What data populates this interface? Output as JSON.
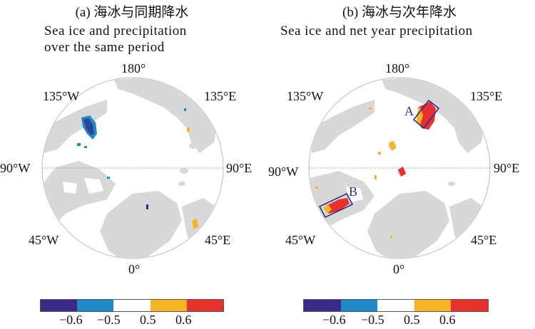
{
  "panels": [
    {
      "title": "(a) 海冰与同期降水",
      "subtitle_lines": [
        "Sea ice and  precipitation",
        "over the same period"
      ],
      "lon_labels": {
        "top": "180°",
        "tl": "135°W",
        "tr": "135°E",
        "left": "90°W",
        "right": "90°E",
        "bl": "45°W",
        "br": "45°E",
        "bottom": "0°"
      },
      "boxes": []
    },
    {
      "title": "(b) 海冰与次年降水",
      "subtitle_lines": [
        "Sea ice and  net year precipitation"
      ],
      "lon_labels": {
        "top": "180°",
        "tl": "135°W",
        "tr": "135°E",
        "left": "90°W",
        "right": "90°E",
        "bl": "45°W",
        "br": "45°E",
        "bottom": "0°"
      },
      "boxes": [
        {
          "label": "A"
        },
        {
          "label": "B"
        }
      ]
    }
  ],
  "colorbar": {
    "colors": [
      "#3a2a86",
      "#1f8ac8",
      "#ffffff",
      "#f6b324",
      "#e8302c"
    ],
    "ticks": [
      "−0.6",
      "−0.5",
      "0.5",
      "0.6"
    ]
  }
}
